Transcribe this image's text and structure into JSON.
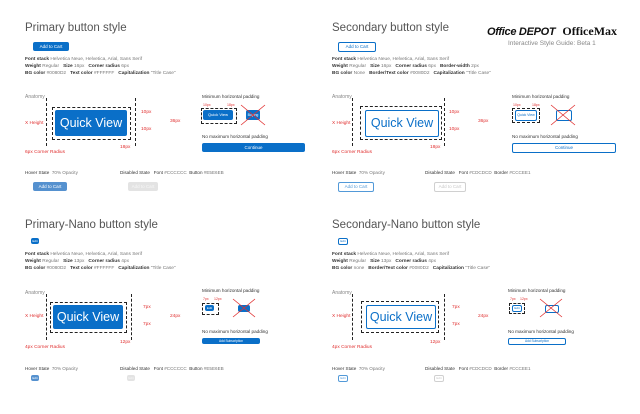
{
  "brand": {
    "name1": "Office DEPOT",
    "name2": "OfficeMax",
    "guide": "Interactive Style Guide: Beta 1"
  },
  "labels": {
    "font_stack": "Font stack",
    "weight": "Weight",
    "size": "Size",
    "corner_radius": "Corner radius",
    "border_width": "Border-width",
    "bg_color": "BG color",
    "text_color": "Text color",
    "border_text_color": "Border/Text color",
    "capitalization": "Capitalization",
    "anatomy": "Anatomy",
    "x_height": "X Height",
    "min_pad": "Minimum horizontal padding",
    "no_max_pad": "No maximum horizontal padding",
    "hover_state": "Hover State",
    "disabled_state": "Disabled State",
    "font": "Font",
    "button": "Button",
    "border": "Border"
  },
  "primary": {
    "title": "Primary button style",
    "sample": "Add to Cart",
    "font_stack": "Helvetica Neue, Helvetica, Arial, Sans Serif",
    "weight": "Regular",
    "size": "16px",
    "corner_radius": "6px",
    "bg_color": "#0080D2",
    "text_color": "#FFFFFF",
    "capitalization": "\"Title Case\"",
    "qv": "Quick View",
    "pad_10": "10px",
    "pad_36": "36px",
    "pad_18": "18px",
    "corner_label": "6px Corner Radius",
    "mini_qv": "Quick View",
    "mini_x": "Buying",
    "continue": "Continue",
    "hover_opacity": "70% Opacity",
    "disabled_font": "#CCCCCC",
    "disabled_button": "#E5E6EB",
    "hover_label": "Add to Cart",
    "disabled_label": "Add to Cart"
  },
  "secondary": {
    "title": "Secondary button style",
    "sample": "Add to Cart",
    "font_stack": "Helvetica Neue, Helvetica, Arial, Sans Serif",
    "weight": "Regular",
    "size": "16px",
    "corner_radius": "6px",
    "border_width": "2px",
    "bg_color": "None",
    "border_text_color": "#0080D2",
    "capitalization": "\"Title Case\"",
    "qv": "Quick View",
    "pad_10": "10px",
    "pad_36": "36px",
    "pad_18": "18px",
    "corner_label": "6px Corner Radius",
    "mini_qv": "Quick View",
    "continue": "Continue",
    "hover_opacity": "70% Opacity",
    "disabled_font": "#CDCDCD",
    "disabled_border": "#CCCEE1",
    "hover_label": "Add to Cart",
    "disabled_label": "Add to Cart"
  },
  "primary_nano": {
    "title": "Primary-Nano button style",
    "sample": "Edit",
    "font_stack": "Helvetica Neue, Helvetica, Arial, Sans Serif",
    "weight": "Regular",
    "size": "13px",
    "corner_radius": "4px",
    "bg_color": "#0080D2",
    "text_color": "#FFFFFF",
    "capitalization": "\"Title Case\"",
    "qv": "Quick View",
    "pad_7": "7px",
    "pad_24": "24px",
    "pad_12": "12px",
    "corner_label": "4px Corner Radius",
    "mini_a": "7px",
    "mini_b": "12px",
    "mini_qv": "Edit",
    "continue": "Add Subscription",
    "hover_opacity": "70% Opacity",
    "disabled_font": "#CCCCCC",
    "disabled_button": "#E5E6EB",
    "hover_label": "Edit",
    "disabled_label": "Edit"
  },
  "secondary_nano": {
    "title": "Secondary-Nano button style",
    "sample": "Edit",
    "font_stack": "Helvetica Neue, Helvetica, Arial, Sans Serif",
    "weight": "Regular",
    "size": "13px",
    "corner_radius": "4px",
    "bg_color": "none",
    "border_text_color": "#0080D2",
    "capitalization": "\"Title Case\"",
    "qv": "Quick View",
    "pad_7": "7px",
    "pad_24": "24px",
    "pad_12": "12px",
    "corner_label": "4px Corner Radius",
    "mini_a": "7px",
    "mini_b": "12px",
    "mini_qv": "Edit",
    "continue": "Add Subscription",
    "hover_opacity": "70% Opacity",
    "disabled_font": "#CDCDCD",
    "disabled_border": "#CCCEE1",
    "hover_label": "Edit",
    "disabled_label": "Edit"
  }
}
